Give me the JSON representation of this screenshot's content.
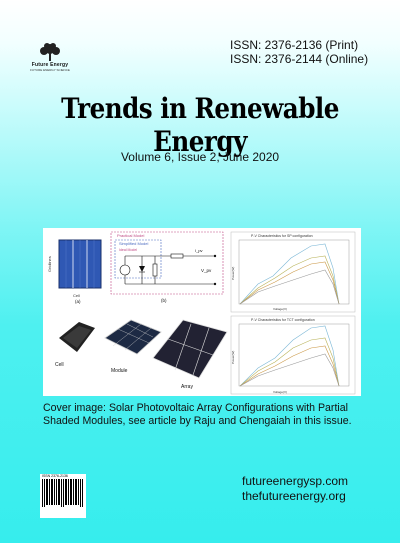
{
  "logo": {
    "name": "Future Energy",
    "sub": "FUTURE ENERGY SCIENCE"
  },
  "issn": {
    "print": "ISSN: 2376-2136 (Print)",
    "online": "ISSN: 2376-2144 (Online)"
  },
  "journal_title": "Trends in Renewable Energy",
  "volume_line": "Volume 6, Issue 2, June 2020",
  "figure": {
    "model_box_title": "Practical Model",
    "simplified_label": "Simplified Model",
    "ideal_label": "Ideal Model",
    "label_a": "(a)",
    "label_b": "(b)",
    "cell_text": "Cell",
    "gridlines_text": "Gridlines",
    "v_pv": "V_pv",
    "i_pv": "I_pv",
    "chart_top_title": "P-V Characteristics for SP configuration",
    "chart_bottom_title": "P-V Characteristics for TCT configuration",
    "chart_xlabel": "Voltage(V)",
    "chart_ylabel": "Power(W)",
    "photo_cell": "Cell",
    "photo_module": "Module",
    "photo_array": "Array"
  },
  "caption": "Cover image: Solar Photovoltaic Array Configurations with Partial Shaded Modules, see article by Raju and Chengaiah in this issue.",
  "urls": [
    "futureenergysp.com",
    "thefutureenergy.org"
  ],
  "barcode": {
    "label": "ISSN 2376-2136"
  },
  "colors": {
    "background_top": "#ffffff",
    "background_bottom": "#36eded"
  }
}
